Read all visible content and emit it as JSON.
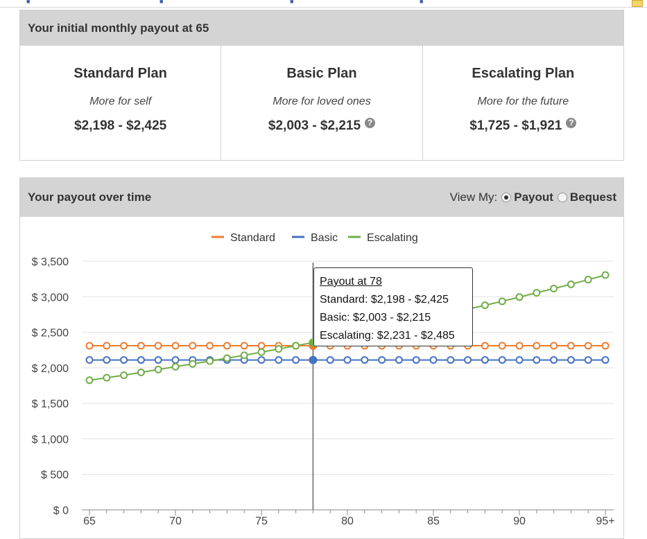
{
  "colors": {
    "standard": "#ee7c31",
    "basic": "#4472c4",
    "escalating": "#70ad47",
    "header_bg": "#d4d4d4"
  },
  "initial": {
    "header": "Your initial monthly payout at 65",
    "plans": [
      {
        "title": "Standard Plan",
        "subtitle": "More for self",
        "range": "$2,198 - $2,425",
        "help": false
      },
      {
        "title": "Basic Plan",
        "subtitle": "More for loved ones",
        "range": "$2,003 - $2,215",
        "help": true
      },
      {
        "title": "Escalating Plan",
        "subtitle": "More for the future",
        "range": "$1,725 - $1,921",
        "help": true
      }
    ]
  },
  "overtime": {
    "header": "Your payout over time",
    "view_label": "View My:",
    "options": [
      {
        "label": "Payout",
        "checked": true
      },
      {
        "label": "Bequest",
        "checked": false
      }
    ]
  },
  "tooltip": {
    "title": "Payout at 78",
    "lines": [
      "Standard: $2,198 - $2,425",
      "Basic: $2,003 - $2,215",
      "Escalating: $2,231 - $2,485"
    ]
  },
  "help_icon": "question-circle-icon",
  "chart_data": {
    "type": "line",
    "x": [
      65,
      66,
      67,
      68,
      69,
      70,
      71,
      72,
      73,
      74,
      75,
      76,
      77,
      78,
      79,
      80,
      81,
      82,
      83,
      84,
      85,
      86,
      87,
      88,
      89,
      90,
      91,
      92,
      93,
      94,
      95
    ],
    "x_tick_labels": [
      "65",
      "70",
      "75",
      "80",
      "85",
      "90",
      "95+"
    ],
    "x_tick_values": [
      65,
      70,
      75,
      80,
      85,
      90,
      95
    ],
    "y_tick_labels": [
      "$ 0",
      "$ 500",
      "$ 1,000",
      "$ 1,500",
      "$ 2,000",
      "$ 2,500",
      "$ 3,000",
      "$ 3,500"
    ],
    "ylim": [
      0,
      3500
    ],
    "grid": true,
    "legend_position": "top-center",
    "highlight_x": 78,
    "series": [
      {
        "name": "Standard",
        "color_key": "standard",
        "values": [
          2310,
          2310,
          2310,
          2310,
          2310,
          2310,
          2310,
          2310,
          2310,
          2310,
          2310,
          2310,
          2310,
          2310,
          2310,
          2310,
          2310,
          2310,
          2310,
          2310,
          2310,
          2310,
          2310,
          2310,
          2310,
          2310,
          2310,
          2310,
          2310,
          2310,
          2310
        ]
      },
      {
        "name": "Basic",
        "color_key": "basic",
        "values": [
          2110,
          2110,
          2110,
          2110,
          2110,
          2110,
          2110,
          2110,
          2110,
          2110,
          2110,
          2110,
          2110,
          2110,
          2110,
          2110,
          2110,
          2110,
          2110,
          2110,
          2110,
          2110,
          2110,
          2110,
          2110,
          2110,
          2110,
          2110,
          2110,
          2110,
          2110
        ]
      },
      {
        "name": "Escalating",
        "color_key": "escalating",
        "values": [
          1825,
          1860,
          1895,
          1935,
          1975,
          2015,
          2055,
          2095,
          2135,
          2175,
          2220,
          2265,
          2310,
          2355,
          2405,
          2455,
          2505,
          2555,
          2605,
          2660,
          2715,
          2770,
          2825,
          2880,
          2935,
          2995,
          3055,
          3115,
          3175,
          3240,
          3305
        ]
      }
    ]
  }
}
